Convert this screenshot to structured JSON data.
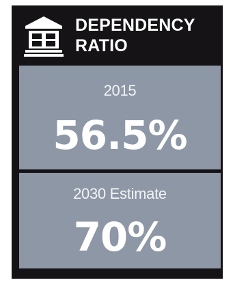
{
  "card": {
    "title": "DEPENDENCY RATIO",
    "icon": "bank-building-icon",
    "background_color": "#151316",
    "panel_color": "#8d97a6"
  },
  "stats": [
    {
      "label": "2015",
      "value": "56.5%"
    },
    {
      "label": "2030 Estimate",
      "value": "70%"
    }
  ]
}
